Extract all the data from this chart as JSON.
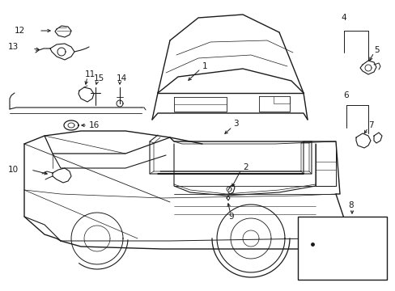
{
  "bg_color": "#ffffff",
  "lc": "#1a1a1a",
  "lw": 0.7,
  "fig_w": 4.89,
  "fig_h": 3.6,
  "dpi": 100
}
